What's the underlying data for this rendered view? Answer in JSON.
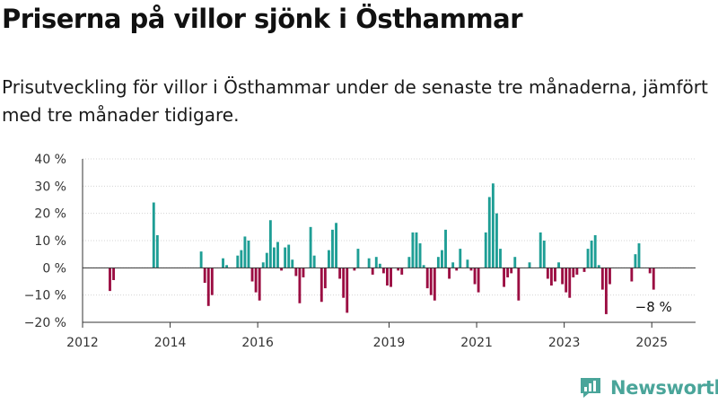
{
  "title": "Priserna på villor sjönk i Östhammar",
  "subtitle": "Prisutveckling för villor i Östhammar under de senaste tre månaderna, jämfört med tre månader tidigare.",
  "brand": "Newsworthy",
  "colors": {
    "positive": "#1e9e95",
    "negative": "#9b0d42",
    "brand": "#4aa59a"
  },
  "chart_data": {
    "type": "bar",
    "title": "",
    "xlabel": "",
    "ylabel": "",
    "ylim": [
      -20,
      40
    ],
    "y_ticks": [
      "40 %",
      "30 %",
      "20 %",
      "10 %",
      "0 %",
      "−10 %",
      "−20 %"
    ],
    "x_ticks": [
      "2012",
      "2014",
      "2016",
      "2019",
      "2021",
      "2023",
      "2025"
    ],
    "x_range": [
      "2012-01",
      "2025-12"
    ],
    "grid": true,
    "annotation": {
      "text": "−8 %",
      "x": "2025-01"
    },
    "bars": [
      {
        "x": "2012-08",
        "value": -8.5
      },
      {
        "x": "2012-09",
        "value": -4.5
      },
      {
        "x": "2013-08",
        "value": 24
      },
      {
        "x": "2013-09",
        "value": 12
      },
      {
        "x": "2014-09",
        "value": 6
      },
      {
        "x": "2014-10",
        "value": -5.5
      },
      {
        "x": "2014-11",
        "value": -14
      },
      {
        "x": "2014-12",
        "value": -10
      },
      {
        "x": "2015-03",
        "value": 3.5
      },
      {
        "x": "2015-04",
        "value": 1
      },
      {
        "x": "2015-07",
        "value": 4.5
      },
      {
        "x": "2015-08",
        "value": 6.5
      },
      {
        "x": "2015-09",
        "value": 11.5
      },
      {
        "x": "2015-10",
        "value": 10
      },
      {
        "x": "2015-11",
        "value": -5
      },
      {
        "x": "2015-12",
        "value": -9
      },
      {
        "x": "2016-01",
        "value": -12
      },
      {
        "x": "2016-02",
        "value": 2
      },
      {
        "x": "2016-03",
        "value": 5.5
      },
      {
        "x": "2016-04",
        "value": 17.5
      },
      {
        "x": "2016-05",
        "value": 7.5
      },
      {
        "x": "2016-06",
        "value": 9.5
      },
      {
        "x": "2016-07",
        "value": -1
      },
      {
        "x": "2016-08",
        "value": 7.5
      },
      {
        "x": "2016-09",
        "value": 8.5
      },
      {
        "x": "2016-10",
        "value": 3
      },
      {
        "x": "2016-11",
        "value": -3
      },
      {
        "x": "2016-12",
        "value": -13
      },
      {
        "x": "2017-01",
        "value": -3.5
      },
      {
        "x": "2017-03",
        "value": 15
      },
      {
        "x": "2017-04",
        "value": 4.5
      },
      {
        "x": "2017-06",
        "value": -12.5
      },
      {
        "x": "2017-07",
        "value": -7.5
      },
      {
        "x": "2017-08",
        "value": 6.5
      },
      {
        "x": "2017-09",
        "value": 14
      },
      {
        "x": "2017-10",
        "value": 16.5
      },
      {
        "x": "2017-11",
        "value": -4
      },
      {
        "x": "2017-12",
        "value": -11
      },
      {
        "x": "2018-01",
        "value": -16.5
      },
      {
        "x": "2018-03",
        "value": -1
      },
      {
        "x": "2018-04",
        "value": 7
      },
      {
        "x": "2018-07",
        "value": 3.5
      },
      {
        "x": "2018-08",
        "value": -2.5
      },
      {
        "x": "2018-09",
        "value": 4
      },
      {
        "x": "2018-10",
        "value": 1.5
      },
      {
        "x": "2018-11",
        "value": -2
      },
      {
        "x": "2018-12",
        "value": -6.5
      },
      {
        "x": "2019-01",
        "value": -7
      },
      {
        "x": "2019-03",
        "value": -1
      },
      {
        "x": "2019-04",
        "value": -2.5
      },
      {
        "x": "2019-06",
        "value": 4
      },
      {
        "x": "2019-07",
        "value": 13
      },
      {
        "x": "2019-08",
        "value": 13
      },
      {
        "x": "2019-09",
        "value": 9
      },
      {
        "x": "2019-10",
        "value": 1
      },
      {
        "x": "2019-11",
        "value": -7.5
      },
      {
        "x": "2019-12",
        "value": -10
      },
      {
        "x": "2020-01",
        "value": -12
      },
      {
        "x": "2020-02",
        "value": 4
      },
      {
        "x": "2020-03",
        "value": 6.5
      },
      {
        "x": "2020-04",
        "value": 14
      },
      {
        "x": "2020-05",
        "value": -4
      },
      {
        "x": "2020-06",
        "value": 2
      },
      {
        "x": "2020-07",
        "value": -1
      },
      {
        "x": "2020-08",
        "value": 7
      },
      {
        "x": "2020-10",
        "value": 3
      },
      {
        "x": "2020-11",
        "value": -1
      },
      {
        "x": "2020-12",
        "value": -6
      },
      {
        "x": "2021-01",
        "value": -9
      },
      {
        "x": "2021-03",
        "value": 13
      },
      {
        "x": "2021-04",
        "value": 26
      },
      {
        "x": "2021-05",
        "value": 31
      },
      {
        "x": "2021-06",
        "value": 20
      },
      {
        "x": "2021-07",
        "value": 7
      },
      {
        "x": "2021-08",
        "value": -7
      },
      {
        "x": "2021-09",
        "value": -3.5
      },
      {
        "x": "2021-10",
        "value": -2
      },
      {
        "x": "2021-11",
        "value": 4
      },
      {
        "x": "2021-12",
        "value": -12
      },
      {
        "x": "2022-03",
        "value": 2
      },
      {
        "x": "2022-06",
        "value": 13
      },
      {
        "x": "2022-07",
        "value": 10
      },
      {
        "x": "2022-08",
        "value": -4
      },
      {
        "x": "2022-09",
        "value": -6.5
      },
      {
        "x": "2022-10",
        "value": -5
      },
      {
        "x": "2022-11",
        "value": 2
      },
      {
        "x": "2022-12",
        "value": -6
      },
      {
        "x": "2023-01",
        "value": -9
      },
      {
        "x": "2023-02",
        "value": -11
      },
      {
        "x": "2023-03",
        "value": -3.5
      },
      {
        "x": "2023-04",
        "value": -2.5
      },
      {
        "x": "2023-06",
        "value": -1.5
      },
      {
        "x": "2023-07",
        "value": 7
      },
      {
        "x": "2023-08",
        "value": 10
      },
      {
        "x": "2023-09",
        "value": 12
      },
      {
        "x": "2023-10",
        "value": 1
      },
      {
        "x": "2023-11",
        "value": -8
      },
      {
        "x": "2023-12",
        "value": -17
      },
      {
        "x": "2024-01",
        "value": -6
      },
      {
        "x": "2024-07",
        "value": -5
      },
      {
        "x": "2024-08",
        "value": 5
      },
      {
        "x": "2024-09",
        "value": 9
      },
      {
        "x": "2024-12",
        "value": -2
      },
      {
        "x": "2025-01",
        "value": -8
      }
    ]
  }
}
